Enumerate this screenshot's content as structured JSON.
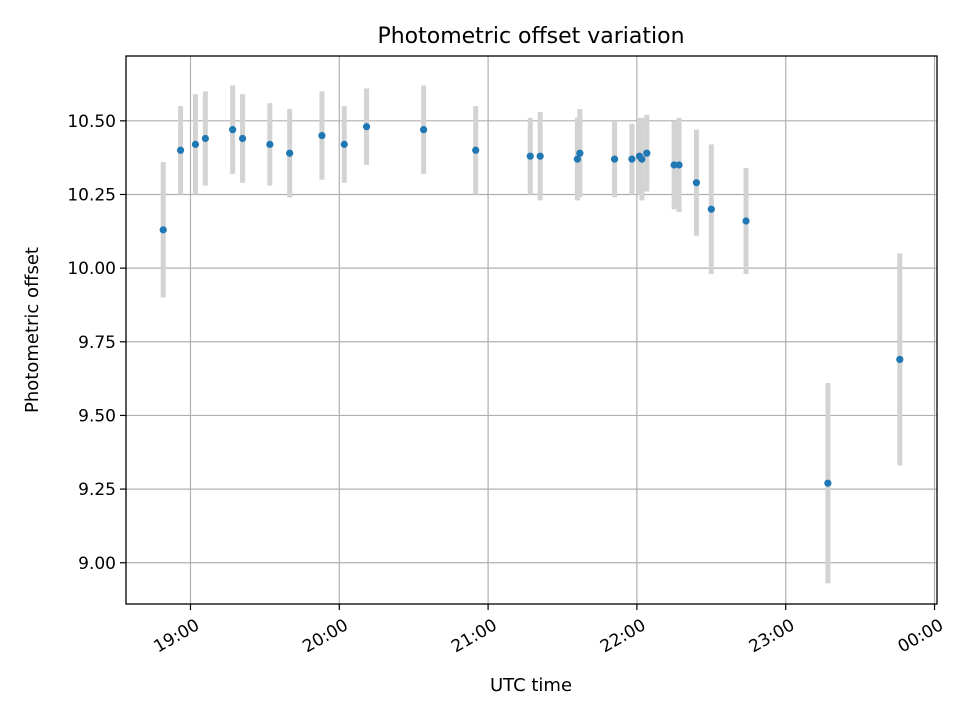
{
  "chart_data": {
    "type": "scatter",
    "title": "Photometric offset variation",
    "xlabel": "UTC time",
    "ylabel": "Photometric offset",
    "xlim": [
      "18:34",
      "00:01"
    ],
    "ylim": [
      8.86,
      10.72
    ],
    "xticks": [
      "19:00",
      "20:00",
      "21:00",
      "22:00",
      "23:00",
      "00:00"
    ],
    "yticks": [
      9.0,
      9.25,
      9.5,
      9.75,
      10.0,
      10.25,
      10.5
    ],
    "grid": true,
    "colors": {
      "points": "#1f77b4",
      "error_bars": "#d3d3d3"
    },
    "points": [
      {
        "x": "18:49",
        "y": 10.13,
        "err": 0.23
      },
      {
        "x": "18:56",
        "y": 10.4,
        "err": 0.15
      },
      {
        "x": "19:02",
        "y": 10.42,
        "err": 0.17
      },
      {
        "x": "19:06",
        "y": 10.44,
        "err": 0.16
      },
      {
        "x": "19:17",
        "y": 10.47,
        "err": 0.15
      },
      {
        "x": "19:21",
        "y": 10.44,
        "err": 0.15
      },
      {
        "x": "19:32",
        "y": 10.42,
        "err": 0.14
      },
      {
        "x": "19:40",
        "y": 10.39,
        "err": 0.15
      },
      {
        "x": "19:53",
        "y": 10.45,
        "err": 0.15
      },
      {
        "x": "20:02",
        "y": 10.42,
        "err": 0.13
      },
      {
        "x": "20:11",
        "y": 10.48,
        "err": 0.13
      },
      {
        "x": "20:34",
        "y": 10.47,
        "err": 0.15
      },
      {
        "x": "20:55",
        "y": 10.4,
        "err": 0.15
      },
      {
        "x": "21:17",
        "y": 10.38,
        "err": 0.13
      },
      {
        "x": "21:21",
        "y": 10.38,
        "err": 0.15
      },
      {
        "x": "21:36",
        "y": 10.37,
        "err": 0.14
      },
      {
        "x": "21:37",
        "y": 10.39,
        "err": 0.15
      },
      {
        "x": "21:51",
        "y": 10.37,
        "err": 0.13
      },
      {
        "x": "21:58",
        "y": 10.37,
        "err": 0.12
      },
      {
        "x": "22:01",
        "y": 10.38,
        "err": 0.13
      },
      {
        "x": "22:02",
        "y": 10.37,
        "err": 0.14
      },
      {
        "x": "22:04",
        "y": 10.39,
        "err": 0.13
      },
      {
        "x": "22:15",
        "y": 10.35,
        "err": 0.15
      },
      {
        "x": "22:17",
        "y": 10.35,
        "err": 0.16
      },
      {
        "x": "22:24",
        "y": 10.29,
        "err": 0.18
      },
      {
        "x": "22:30",
        "y": 10.2,
        "err": 0.22
      },
      {
        "x": "22:44",
        "y": 10.16,
        "err": 0.18
      },
      {
        "x": "23:17",
        "y": 9.27,
        "err": 0.34
      },
      {
        "x": "23:46",
        "y": 9.69,
        "err": 0.36
      }
    ]
  }
}
